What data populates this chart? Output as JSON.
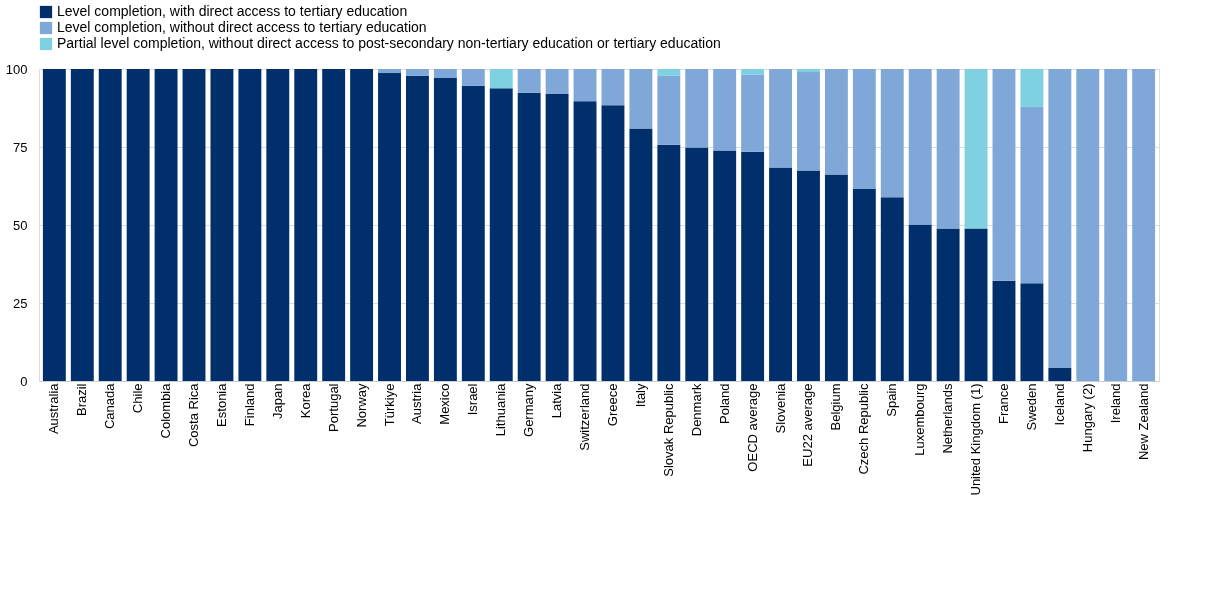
{
  "chart_data": {
    "type": "bar",
    "stacked": true,
    "categories": [
      "Australia",
      "Brazil",
      "Canada",
      "Chile",
      "Colombia",
      "Costa Rica",
      "Estonia",
      "Finland",
      "Japan",
      "Korea",
      "Portugal",
      "Norway",
      "Türkiye",
      "Austria",
      "Mexico",
      "Israel",
      "Lithuania",
      "Germany",
      "Latvia",
      "Switzerland",
      "Greece",
      "Italy",
      "Slovak Republic",
      "Denmark",
      "Poland",
      "OECD average",
      "Slovenia",
      "EU22 average",
      "Belgium",
      "Czech Republic",
      "Spain",
      "Luxembourg",
      "Netherlands",
      "United Kingdom (1)",
      "France",
      "Sweden",
      "Iceland",
      "Hungary (2)",
      "Ireland",
      "New Zealand"
    ],
    "series": [
      {
        "name": "Level completion, with direct access to tertiary education",
        "color": "#002f6c",
        "values": [
          100,
          100,
          100,
          100,
          100,
          100,
          100,
          100,
          100,
          100,
          100,
          100,
          98.7,
          97.8,
          97.1,
          94.6,
          93.8,
          92.4,
          92.0,
          89.7,
          88.4,
          80.9,
          75.7,
          74.8,
          73.9,
          73.5,
          68.4,
          67.5,
          66.2,
          61.5,
          58.9,
          50.2,
          48.9,
          48.9,
          32.1,
          31.3,
          4.2,
          0,
          0,
          0
        ]
      },
      {
        "name": "Level completion, without direct access to tertiary education",
        "color": "#7fa8d9",
        "values": [
          0,
          0,
          0,
          0,
          0,
          0,
          0,
          0,
          0,
          0,
          0,
          0,
          1.3,
          2.2,
          2.9,
          5.4,
          0,
          7.6,
          8.0,
          10.3,
          11.6,
          19.1,
          22.1,
          25.2,
          26.1,
          24.7,
          31.6,
          31.5,
          33.8,
          38.5,
          41.1,
          49.8,
          51.1,
          0,
          67.9,
          56.5,
          95.8,
          100,
          100,
          100
        ]
      },
      {
        "name": "Partial level completion, without direct access to post-secondary non-tertiary education or tertiary education",
        "color": "#7fd0e0",
        "values": [
          0,
          0,
          0,
          0,
          0,
          0,
          0,
          0,
          0,
          0,
          0,
          0,
          0,
          0,
          0,
          0,
          6.2,
          0,
          0,
          0,
          0,
          0,
          2.2,
          0,
          0,
          1.8,
          0,
          1.0,
          0,
          0,
          0,
          0,
          0,
          51.1,
          0,
          12.2,
          0,
          0,
          0,
          0
        ]
      }
    ],
    "ylim": [
      0,
      100
    ],
    "yticks": [
      0,
      25,
      50,
      75,
      100
    ],
    "grid": "y",
    "legend": "top"
  }
}
